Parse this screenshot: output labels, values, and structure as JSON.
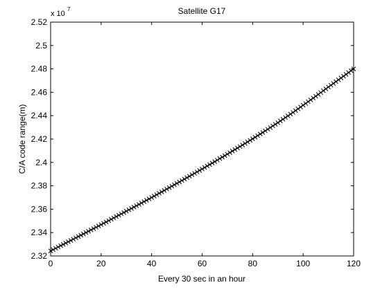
{
  "chart_data": {
    "type": "scatter",
    "title": "Satellite G17",
    "xlabel": "Every 30 sec in an hour",
    "ylabel": "C/A code range(m)",
    "y_exponent_label": "x 10",
    "y_exponent_power": "7",
    "xlim": [
      0,
      120
    ],
    "ylim": [
      23200000,
      25200000
    ],
    "x_ticks": [
      0,
      20,
      40,
      60,
      80,
      100,
      120
    ],
    "x_tick_labels": [
      "0",
      "20",
      "40",
      "60",
      "80",
      "100",
      "120"
    ],
    "y_ticks": [
      23200000,
      23400000,
      23600000,
      23800000,
      24000000,
      24200000,
      24400000,
      24600000,
      24800000,
      25000000,
      25200000
    ],
    "y_tick_labels": [
      "2.32",
      "2.34",
      "2.36",
      "2.38",
      "2.4",
      "2.42",
      "2.44",
      "2.46",
      "2.48",
      "2.5",
      "2.52"
    ],
    "marker": "x",
    "marker_color": "#000000",
    "grid": false,
    "series": [
      {
        "x": [
          0,
          5,
          10,
          15,
          20,
          25,
          30,
          35,
          40,
          45,
          50,
          55,
          60,
          65,
          70,
          75,
          80,
          85,
          90,
          95,
          100,
          105,
          110,
          115,
          120
        ],
        "values": [
          23243000,
          23299000,
          23355000,
          23411000,
          23468000,
          23525000,
          23583000,
          23641000,
          23700000,
          23760000,
          23821000,
          23882000,
          23944000,
          24007000,
          24071000,
          24136000,
          24202000,
          24270000,
          24340000,
          24413000,
          24489000,
          24566000,
          24645000,
          24722000,
          24800000
        ]
      }
    ]
  }
}
